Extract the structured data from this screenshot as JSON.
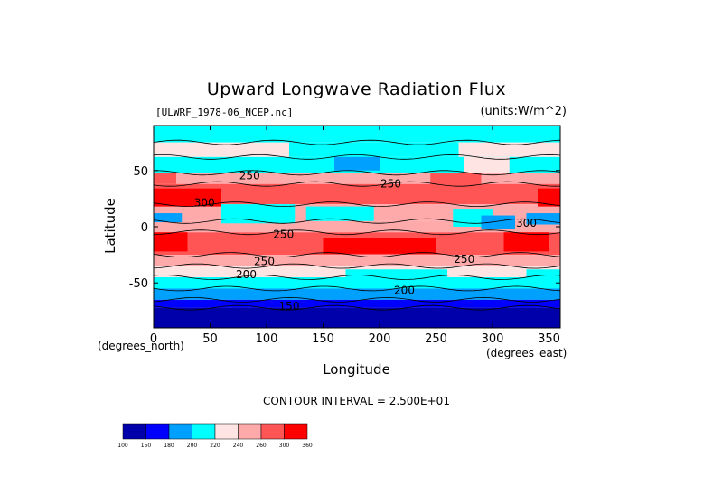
{
  "chart_data": {
    "type": "heatmap",
    "title": "Upward Longwave Radiation Flux",
    "file_label": "[ULWRF_1978-06_NCEP.nc]",
    "units_label": "(units:W/m^2)",
    "xlabel": "Longitude",
    "ylabel": "Latitude",
    "x_unit": "(degrees_east)",
    "y_unit": "(degrees_north)",
    "xlim": [
      0,
      360
    ],
    "ylim": [
      -90,
      90
    ],
    "x_ticks": [
      0,
      50,
      100,
      150,
      200,
      250,
      300,
      350
    ],
    "y_ticks": [
      -50,
      0,
      50
    ],
    "contour_interval_text": "CONTOUR INTERVAL = 2.500E+01",
    "contour_labels": [
      {
        "text": "250",
        "lon": 85,
        "lat": 42
      },
      {
        "text": "250",
        "lon": 210,
        "lat": 35
      },
      {
        "text": "300",
        "lon": 45,
        "lat": 18
      },
      {
        "text": "250",
        "lon": 115,
        "lat": -10
      },
      {
        "text": "250",
        "lon": 98,
        "lat": -34
      },
      {
        "text": "250",
        "lon": 275,
        "lat": -32
      },
      {
        "text": "200",
        "lon": 82,
        "lat": -46
      },
      {
        "text": "200",
        "lon": 222,
        "lat": -60
      },
      {
        "text": "150",
        "lon": 120,
        "lat": -74
      },
      {
        "text": "300",
        "lon": 330,
        "lat": 0
      }
    ],
    "colorbar": {
      "levels": [
        100,
        150,
        180,
        200,
        220,
        240,
        260,
        300,
        360
      ],
      "level_labels": [
        "100",
        "150",
        "180",
        "200",
        "220",
        "240",
        "260",
        "300",
        "360"
      ],
      "colors": [
        "#0000aa",
        "#0000ff",
        "#00a0ff",
        "#00ffff",
        "#ffe4e4",
        "#ffaaaa",
        "#ff5555",
        "#ff0000"
      ]
    },
    "lat_bands": [
      {
        "lat_from": 90,
        "lat_to": 75,
        "class_index": 3,
        "value": 215
      },
      {
        "lat_from": 75,
        "lat_to": 62,
        "class_index": 4,
        "value": 230
      },
      {
        "lat_from": 62,
        "lat_to": 48,
        "class_index": 3,
        "value": 212
      },
      {
        "lat_from": 48,
        "lat_to": 38,
        "class_index": 5,
        "value": 248
      },
      {
        "lat_from": 38,
        "lat_to": 20,
        "class_index": 6,
        "value": 275
      },
      {
        "lat_from": 20,
        "lat_to": 5,
        "class_index": 5,
        "value": 250
      },
      {
        "lat_from": 5,
        "lat_to": -5,
        "class_index": 5,
        "value": 245
      },
      {
        "lat_from": -5,
        "lat_to": -25,
        "class_index": 6,
        "value": 285
      },
      {
        "lat_from": -25,
        "lat_to": -35,
        "class_index": 5,
        "value": 255
      },
      {
        "lat_from": -35,
        "lat_to": -45,
        "class_index": 4,
        "value": 230
      },
      {
        "lat_from": -45,
        "lat_to": -55,
        "class_index": 3,
        "value": 205
      },
      {
        "lat_from": -55,
        "lat_to": -65,
        "class_index": 2,
        "value": 190
      },
      {
        "lat_from": -65,
        "lat_to": -72,
        "class_index": 1,
        "value": 165
      },
      {
        "lat_from": -72,
        "lat_to": -90,
        "class_index": 0,
        "value": 130
      }
    ],
    "regions": [
      {
        "lon": [
          0,
          20
        ],
        "lat": [
          48,
          38
        ],
        "class_index": 6
      },
      {
        "lon": [
          0,
          60
        ],
        "lat": [
          34,
          18
        ],
        "class_index": 7
      },
      {
        "lon": [
          60,
          100
        ],
        "lat": [
          34,
          22
        ],
        "class_index": 6
      },
      {
        "lon": [
          0,
          25
        ],
        "lat": [
          12,
          4
        ],
        "class_index": 2
      },
      {
        "lon": [
          60,
          125
        ],
        "lat": [
          20,
          3
        ],
        "class_index": 3
      },
      {
        "lon": [
          135,
          195
        ],
        "lat": [
          18,
          5
        ],
        "class_index": 3
      },
      {
        "lon": [
          160,
          200
        ],
        "lat": [
          70,
          50
        ],
        "class_index": 2
      },
      {
        "lon": [
          120,
          270
        ],
        "lat": [
          75,
          62
        ],
        "class_index": 3
      },
      {
        "lon": [
          275,
          315
        ],
        "lat": [
          62,
          48
        ],
        "class_index": 4
      },
      {
        "lon": [
          220,
          260
        ],
        "lat": [
          34,
          24
        ],
        "class_index": 6
      },
      {
        "lon": [
          245,
          290
        ],
        "lat": [
          48,
          30
        ],
        "class_index": 6
      },
      {
        "lon": [
          340,
          360
        ],
        "lat": [
          34,
          18
        ],
        "class_index": 7
      },
      {
        "lon": [
          265,
          300
        ],
        "lat": [
          16,
          0
        ],
        "class_index": 3
      },
      {
        "lon": [
          290,
          320
        ],
        "lat": [
          10,
          -2
        ],
        "class_index": 2
      },
      {
        "lon": [
          330,
          360
        ],
        "lat": [
          12,
          2
        ],
        "class_index": 2
      },
      {
        "lon": [
          0,
          30
        ],
        "lat": [
          -5,
          -22
        ],
        "class_index": 7
      },
      {
        "lon": [
          150,
          250
        ],
        "lat": [
          -10,
          -24
        ],
        "class_index": 7
      },
      {
        "lon": [
          310,
          350
        ],
        "lat": [
          -5,
          -22
        ],
        "class_index": 7
      },
      {
        "lon": [
          170,
          260
        ],
        "lat": [
          -38,
          -50
        ],
        "class_index": 3
      },
      {
        "lon": [
          330,
          360
        ],
        "lat": [
          -38,
          -48
        ],
        "class_index": 3
      }
    ]
  }
}
